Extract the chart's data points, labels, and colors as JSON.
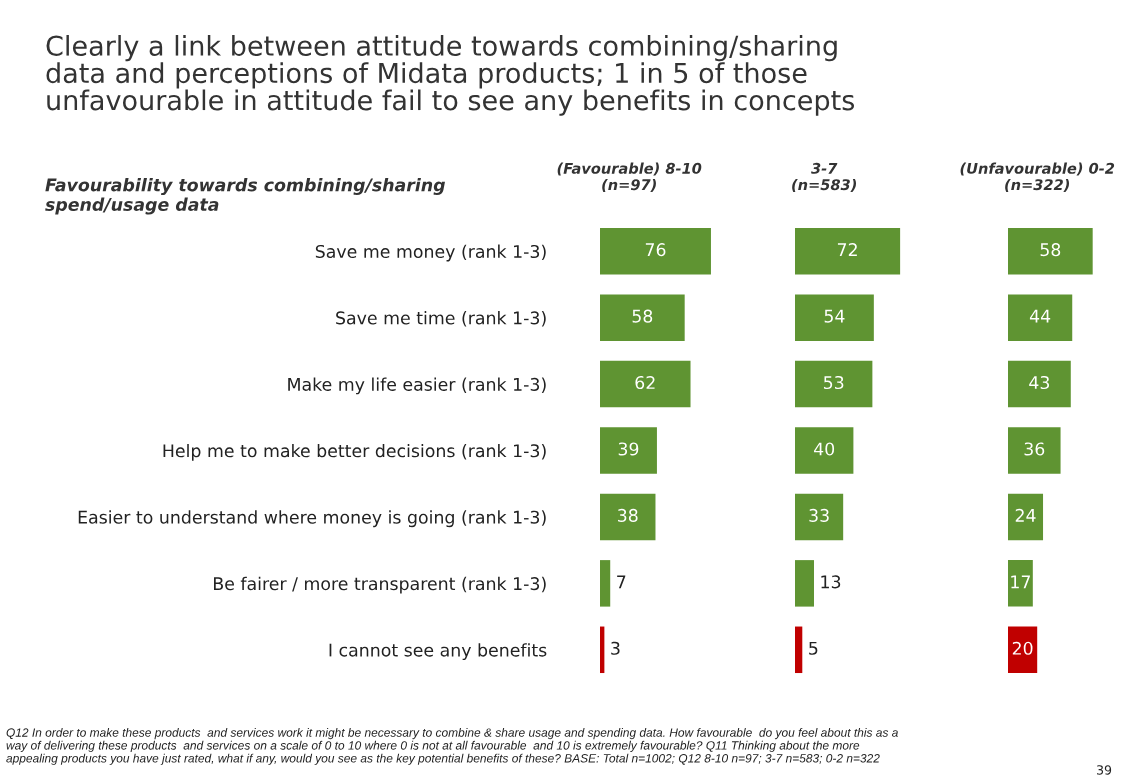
{
  "chart_data": [
    {
      "type": "bar",
      "orientation": "horizontal",
      "title": "(Favourable) 8-10\n(n=97)",
      "categories": [
        "Save me money (rank 1-3)",
        "Save me time (rank 1-3)",
        "Make my life easier (rank 1-3)",
        "Help me to make better decisions (rank 1-3)",
        "Easier to understand where money is going (rank 1-3)",
        "Be fairer / more transparent (rank 1-3)",
        "I cannot see any benefits"
      ],
      "values": [
        76,
        58,
        62,
        39,
        38,
        7,
        3
      ],
      "colors": [
        "#5f9432",
        "#5f9432",
        "#5f9432",
        "#5f9432",
        "#5f9432",
        "#5f9432",
        "#c00000"
      ],
      "data_labels": true,
      "annotations": [
        "Clearly a link between attitude towards combining/sharing\ndata and perceptions of Midata products; 1 in 5 of those\nunfavourable in attitude fail to see any benefits in concepts",
        "Favourability towards combining/sharing\nspend/usage data",
        "Q12 In order to make these products  and services work it might be necessary to combine & share usage and spending data. How favourable  do you feel about this as a\nway of delivering these products  and services on a scale of 0 to 10 where 0 is not at all favourable  and 10 is extremely favourable? Q11 Thinking about the more\nappealing products you have just rated, what if any, would you see as the key potential benefits of these? BASE: Total n=1002; Q12 8-10 n=97; 3-7 n=583; 0-2 n=322",
        "39"
      ]
    },
    {
      "type": "bar",
      "orientation": "horizontal",
      "title": "3-7\n(n=583)",
      "categories": [
        null,
        null,
        null,
        null,
        null,
        null,
        null
      ],
      "values": [
        72,
        54,
        53,
        40,
        33,
        13,
        5
      ],
      "colors": [
        "#5f9432",
        "#5f9432",
        "#5f9432",
        "#5f9432",
        "#5f9432",
        "#5f9432",
        "#c00000"
      ],
      "data_labels": true
    },
    {
      "type": "bar",
      "orientation": "horizontal",
      "title": "(Unfavourable) 0-2\n(n=322)",
      "categories": [
        null,
        null,
        null,
        null,
        null,
        null,
        null
      ],
      "values": [
        58,
        44,
        43,
        36,
        24,
        17,
        20
      ],
      "colors": [
        "#5f9432",
        "#5f9432",
        "#5f9432",
        "#5f9432",
        "#5f9432",
        "#5f9432",
        "#c00000"
      ],
      "data_labels": true
    }
  ]
}
